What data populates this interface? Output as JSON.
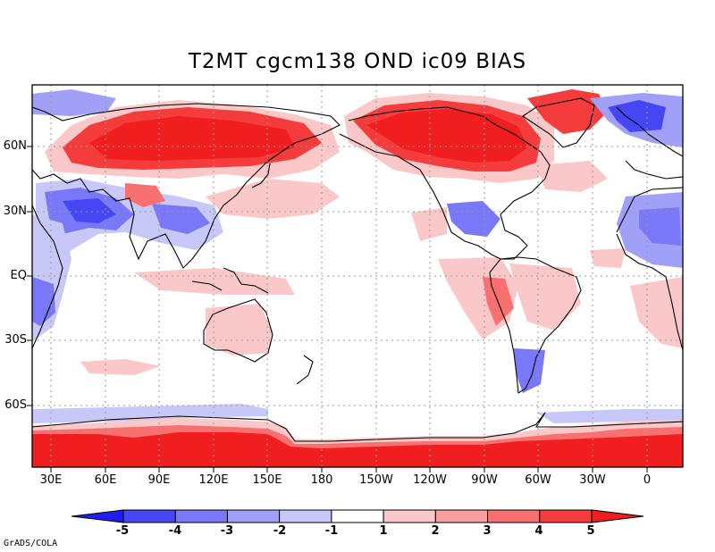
{
  "title": "T2MT cgcm138 OND ic09 BIAS",
  "lon_labels": [
    "30E",
    "60E",
    "90E",
    "120E",
    "150E",
    "180",
    "150W",
    "120W",
    "90W",
    "60W",
    "30W",
    "0"
  ],
  "lat_labels": [
    "60N",
    "30N",
    "EQ",
    "30S",
    "60S"
  ],
  "colorbar": {
    "labels": [
      "-5",
      "-4",
      "-3",
      "-2",
      "-1",
      "1",
      "2",
      "3",
      "4",
      "5"
    ],
    "colors": [
      "#1e1ef0",
      "#4646f5",
      "#7878f8",
      "#a0a0f8",
      "#c8c8f8",
      "#ffffff",
      "#fac8c8",
      "#f8a0a0",
      "#f87070",
      "#f43c3c",
      "#f01e1e"
    ]
  },
  "credit": "GrADS/COLA"
}
